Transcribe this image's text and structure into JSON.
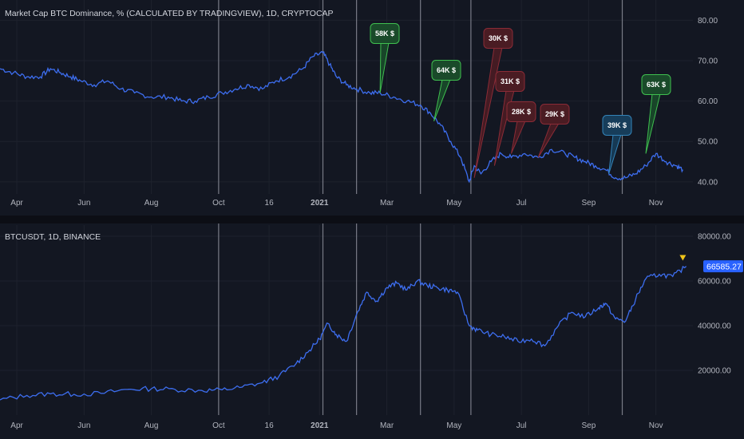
{
  "colors": {
    "background": "#131722",
    "grid_line": "#1e222d",
    "vline": "#787b86",
    "series": "#3d6ef0",
    "green_fill": "#1a4a2a",
    "green_stroke": "#3fbf4f",
    "red_fill": "#4a1c23",
    "red_stroke": "#8a2b36",
    "blue_fill": "#173d5a",
    "blue_stroke": "#3383b8",
    "last_price_bg": "#2962ff",
    "marker_yellow": "#f0c419"
  },
  "x_axis": {
    "ticks": [
      {
        "label": "Apr",
        "t": 0.5
      },
      {
        "label": "Jun",
        "t": 2.5
      },
      {
        "label": "Aug",
        "t": 4.5
      },
      {
        "label": "Oct",
        "t": 6.5
      },
      {
        "label": "16",
        "t": 8.0
      },
      {
        "label": "2021",
        "t": 9.5,
        "bold": true
      },
      {
        "label": "Mar",
        "t": 11.5
      },
      {
        "label": "May",
        "t": 13.5
      },
      {
        "label": "Jul",
        "t": 15.5
      },
      {
        "label": "Sep",
        "t": 17.5
      },
      {
        "label": "Nov",
        "t": 19.5
      }
    ],
    "vertical_lines": [
      6.5,
      9.6,
      10.6,
      12.5,
      14.0,
      18.5
    ]
  },
  "panes": [
    {
      "id": "dominance",
      "title": "Market Cap BTC Dominance, % (CALCULATED BY TRADINGVIEW), 1D, CRYPTOCAP",
      "y_ticks": [
        "80.00",
        "70.00",
        "60.00",
        "50.00",
        "40.00"
      ]
    },
    {
      "id": "btcusdt",
      "title": "BTCUSDT, 1D, BINANCE",
      "y_ticks": [
        "80000.00",
        "60000.00",
        "40000.00",
        "20000.00"
      ],
      "last_price": "66585.27"
    }
  ],
  "annotations": [
    {
      "label": "58K $",
      "style": "green",
      "t": 11.3,
      "value": 62
    },
    {
      "label": "64K $",
      "style": "green",
      "t": 12.9,
      "value": 55
    },
    {
      "label": "30K $",
      "style": "red",
      "t": 14.1,
      "value": 41
    },
    {
      "label": "31K $",
      "style": "red",
      "t": 14.7,
      "value": 44
    },
    {
      "label": "28K $",
      "style": "red",
      "t": 15.2,
      "value": 47
    },
    {
      "label": "29K $",
      "style": "red",
      "t": 16.0,
      "value": 46
    },
    {
      "label": "39K $",
      "style": "blue",
      "t": 18.1,
      "value": 42
    },
    {
      "label": "63K $",
      "style": "green",
      "t": 19.2,
      "value": 47
    }
  ],
  "chart_data": [
    {
      "type": "line",
      "title": "Market Cap BTC Dominance, % (CALCULATED BY TRADINGVIEW), 1D, CRYPTOCAP",
      "xlabel": "",
      "ylabel": "",
      "ylim": [
        37,
        85
      ],
      "grid": true,
      "x": [
        0,
        0.4,
        0.8,
        1.2,
        1.5,
        1.8,
        2.1,
        2.4,
        2.8,
        3.2,
        3.6,
        4.0,
        4.5,
        5.0,
        5.4,
        5.8,
        6.2,
        6.6,
        7.0,
        7.4,
        7.8,
        8.2,
        8.6,
        9.0,
        9.3,
        9.6,
        9.8,
        10.0,
        10.3,
        10.6,
        11.0,
        11.3,
        11.7,
        12.1,
        12.5,
        12.8,
        13.1,
        13.4,
        13.7,
        13.95,
        14.1,
        14.3,
        14.6,
        14.9,
        15.2,
        15.6,
        16.0,
        16.4,
        16.8,
        17.1,
        17.4,
        17.7,
        18.0,
        18.3,
        18.6,
        18.9,
        19.2,
        19.5,
        19.8,
        20.1,
        20.3
      ],
      "values": [
        68,
        67,
        66,
        66,
        68,
        67,
        66,
        65,
        64,
        65,
        63,
        62,
        61,
        61,
        60,
        60,
        61,
        62,
        63,
        64,
        63,
        65,
        66,
        68,
        71,
        72,
        69,
        66,
        64,
        63,
        62,
        62,
        61,
        60,
        59,
        57,
        54,
        50,
        46,
        40,
        44,
        42,
        45,
        47,
        46,
        47,
        46,
        48,
        47,
        46,
        45,
        44,
        43,
        41,
        41,
        42,
        44,
        47,
        45,
        44,
        43
      ]
    },
    {
      "type": "line",
      "title": "BTCUSDT, 1D, BINANCE",
      "xlabel": "",
      "ylabel": "",
      "ylim": [
        0,
        85000
      ],
      "grid": true,
      "x": [
        0,
        0.8,
        1.5,
        2.2,
        3.0,
        3.8,
        4.5,
        5.2,
        6.0,
        6.6,
        7.2,
        7.8,
        8.3,
        8.8,
        9.2,
        9.5,
        9.75,
        10.0,
        10.3,
        10.6,
        10.9,
        11.2,
        11.5,
        11.8,
        12.1,
        12.4,
        12.7,
        13.0,
        13.3,
        13.6,
        13.95,
        14.2,
        14.6,
        15.0,
        15.4,
        15.8,
        16.2,
        16.6,
        17.0,
        17.4,
        17.8,
        18.0,
        18.3,
        18.6,
        18.9,
        19.2,
        19.6,
        20.0,
        20.4
      ],
      "values": [
        6800,
        8800,
        9500,
        9300,
        9700,
        11500,
        11800,
        11500,
        11000,
        11300,
        12500,
        14500,
        17500,
        23000,
        29000,
        34000,
        41000,
        36000,
        33000,
        45000,
        55000,
        51000,
        57000,
        59000,
        56000,
        60000,
        58000,
        57000,
        56000,
        55000,
        40000,
        38000,
        36000,
        35000,
        33000,
        34000,
        31000,
        40000,
        46000,
        44000,
        48000,
        50000,
        43000,
        42000,
        52000,
        61000,
        63000,
        62000,
        66585
      ]
    }
  ]
}
